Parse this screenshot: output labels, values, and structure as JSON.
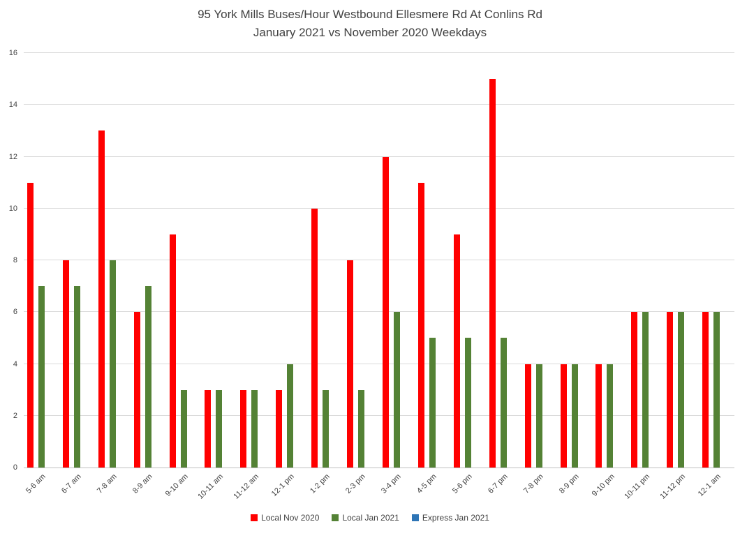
{
  "title_line1": "95 York Mills Buses/Hour Westbound Ellesmere Rd At Conlins Rd",
  "title_line2": "January 2021 vs November 2020 Weekdays",
  "chart_data": {
    "type": "bar",
    "title": "95 York Mills Buses/Hour Westbound Ellesmere Rd At Conlins Rd January 2021 vs November 2020 Weekdays",
    "categories": [
      "5-6 am",
      "6-7 am",
      "7-8 am",
      "8-9 am",
      "9-10 am",
      "10-11 am",
      "11-12 am",
      "12-1 pm",
      "1-2 pm",
      "2-3 pm",
      "3-4 pm",
      "4-5 pm",
      "5-6 pm",
      "6-7 pm",
      "7-8 pm",
      "8-9 pm",
      "9-10 pm",
      "10-11 pm",
      "11-12 pm",
      "12-1 am"
    ],
    "series": [
      {
        "name": "Local Nov 2020",
        "color": "#ff0000",
        "values": [
          11,
          8,
          13,
          6,
          9,
          3,
          3,
          3,
          10,
          8,
          12,
          11,
          9,
          15,
          4,
          4,
          4,
          6,
          6,
          6
        ]
      },
      {
        "name": "Local Jan 2021",
        "color": "#548235",
        "values": [
          7,
          7,
          8,
          7,
          3,
          3,
          3,
          4,
          3,
          3,
          6,
          5,
          5,
          5,
          4,
          4,
          4,
          6,
          6,
          6
        ]
      },
      {
        "name": "Express Jan 2021",
        "color": "#2e75b6",
        "values": [
          0,
          0,
          0,
          0,
          0,
          0,
          0,
          0,
          0,
          0,
          0,
          0,
          0,
          0,
          0,
          0,
          0,
          0,
          0,
          0
        ]
      }
    ],
    "xlabel": "",
    "ylabel": "",
    "ylim": [
      0,
      16
    ],
    "y_ticks": [
      0,
      2,
      4,
      6,
      8,
      10,
      12,
      14,
      16
    ],
    "grid": true,
    "legend_position": "bottom"
  }
}
